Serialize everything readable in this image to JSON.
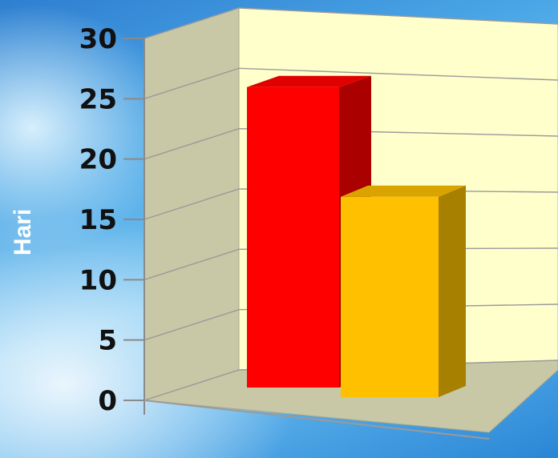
{
  "chart_data": {
    "type": "bar",
    "categories": [
      "",
      ""
    ],
    "values": [
      27,
      18
    ],
    "title": "",
    "xlabel": "",
    "ylabel": "Hari",
    "ylim": [
      0,
      30
    ],
    "yticks": [
      0,
      5,
      10,
      15,
      20,
      25,
      30
    ],
    "grid": true,
    "style": "3d-column",
    "colors": {
      "bar_front": [
        "#ff0000",
        "#ffc000"
      ],
      "bar_top": [
        "#e00000",
        "#d9a400"
      ],
      "bar_side": [
        "#aa0000",
        "#a88000"
      ],
      "back_wall": "#ffffcc",
      "side_wall": "#c8c8a6",
      "floor": "#c8c8a6",
      "grid": "#9a9a9a"
    }
  }
}
